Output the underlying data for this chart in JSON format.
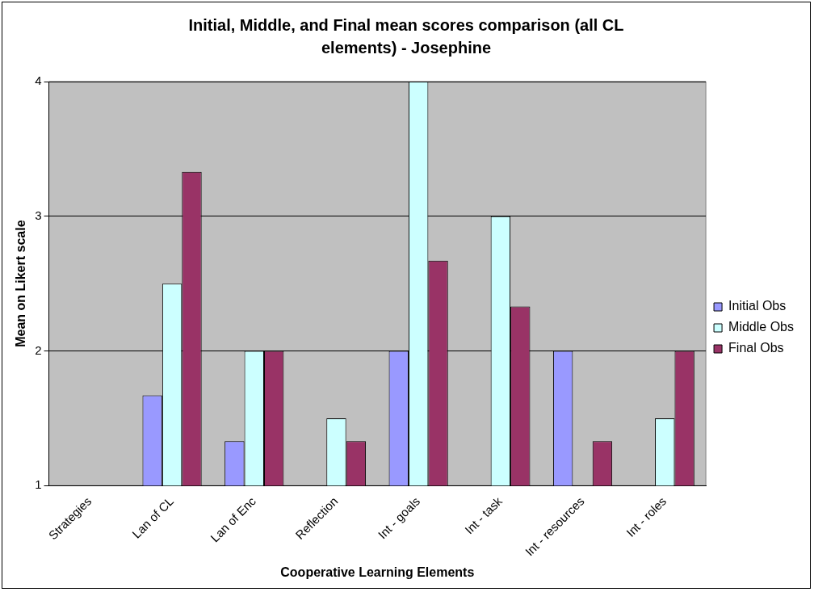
{
  "chart_data": {
    "type": "bar",
    "title": "Initial, Middle, and Final mean scores comparison (all CL elements) - Josephine",
    "xlabel": "Cooperative Learning Elements",
    "ylabel": "Mean on Likert scale",
    "categories": [
      "Strategies",
      "Lan of CL",
      "Lan of Enc",
      "Reflection",
      "Int - goals",
      "Int - task",
      "Int - resources",
      "Int - roles"
    ],
    "series": [
      {
        "name": "Initial Obs",
        "color": "#9999ff",
        "values": [
          null,
          1.67,
          1.33,
          null,
          2,
          null,
          2,
          null
        ]
      },
      {
        "name": "Middle Obs",
        "color": "#ccffff",
        "values": [
          null,
          2.5,
          2,
          1.5,
          4,
          3,
          null,
          1.5
        ]
      },
      {
        "name": "Final Obs",
        "color": "#993366",
        "values": [
          null,
          3.33,
          2,
          1.33,
          2.67,
          2.33,
          1.33,
          2
        ]
      }
    ],
    "ylim": [
      1,
      4
    ],
    "yticks": [
      1,
      2,
      3,
      4
    ],
    "grid": "y",
    "legend": "right"
  }
}
